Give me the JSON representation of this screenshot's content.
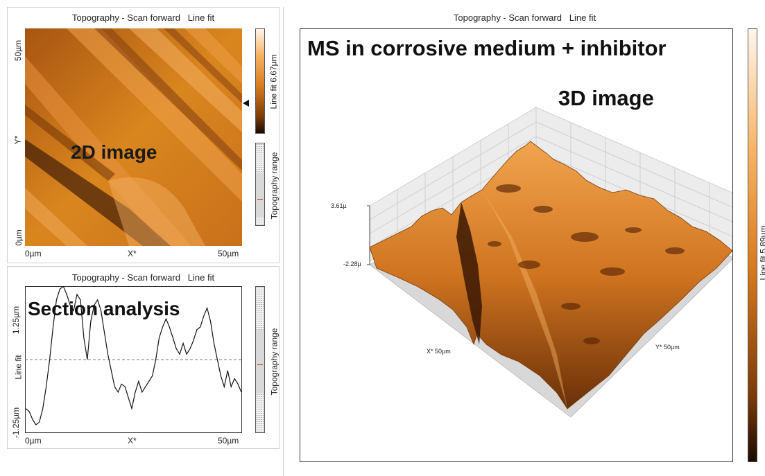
{
  "panels": {
    "topleft": {
      "title": "Topography - Scan forward   Line fit",
      "overlay": "2D image",
      "y_top": "50µm",
      "y_mid": "Y*",
      "y_bottom": "0µm",
      "x_left": "0µm",
      "x_mid": "X*",
      "x_right": "50µm",
      "colorbar_label": "Line fit 6.67µm",
      "range_label": "Topography range"
    },
    "bottomleft": {
      "title": "Topography - Scan forward   Line fit",
      "overlay": "Section analysis",
      "y_top": "1.25µm",
      "y_mid": "Line fit",
      "y_bottom": "-1.25µm",
      "x_left": "0µm",
      "x_mid": "X*",
      "x_right": "50µm",
      "range_label": "Topography range"
    },
    "right": {
      "title": "Topography - Scan forward   Line fit",
      "heading": "MS in corrosive medium + inhibitor",
      "subheading": "3D image",
      "z_top": "3.61µ",
      "z_bottom": "-2.28µ",
      "x_axis": "X* 50µm",
      "y_axis": "Y* 50µm",
      "colorbar_label": "Line fit 5.89µm"
    }
  },
  "colors": {
    "orange_light": "#f7b365",
    "orange": "#d97a1e",
    "orange_dark": "#7a3a08",
    "near_black": "#1a0a02"
  },
  "profile": [
    -0.9,
    -0.95,
    -1.1,
    -1.2,
    -1.15,
    -0.9,
    -0.5,
    0.0,
    0.6,
    1.1,
    1.3,
    1.35,
    1.2,
    1.0,
    0.9,
    1.2,
    1.1,
    0.4,
    0.0,
    0.7,
    1.0,
    1.1,
    0.9,
    0.5,
    0.1,
    -0.2,
    -0.5,
    -0.6,
    -0.45,
    -0.5,
    -0.7,
    -0.9,
    -0.6,
    -0.4,
    -0.6,
    -0.5,
    -0.4,
    -0.3,
    0.0,
    0.4,
    0.6,
    0.75,
    0.6,
    0.4,
    0.2,
    0.1,
    0.3,
    0.1,
    0.2,
    0.35,
    0.55,
    0.6,
    0.8,
    0.95,
    0.7,
    0.3,
    0.0,
    -0.3,
    -0.5,
    -0.2,
    -0.5,
    -0.35,
    -0.45,
    -0.6
  ]
}
